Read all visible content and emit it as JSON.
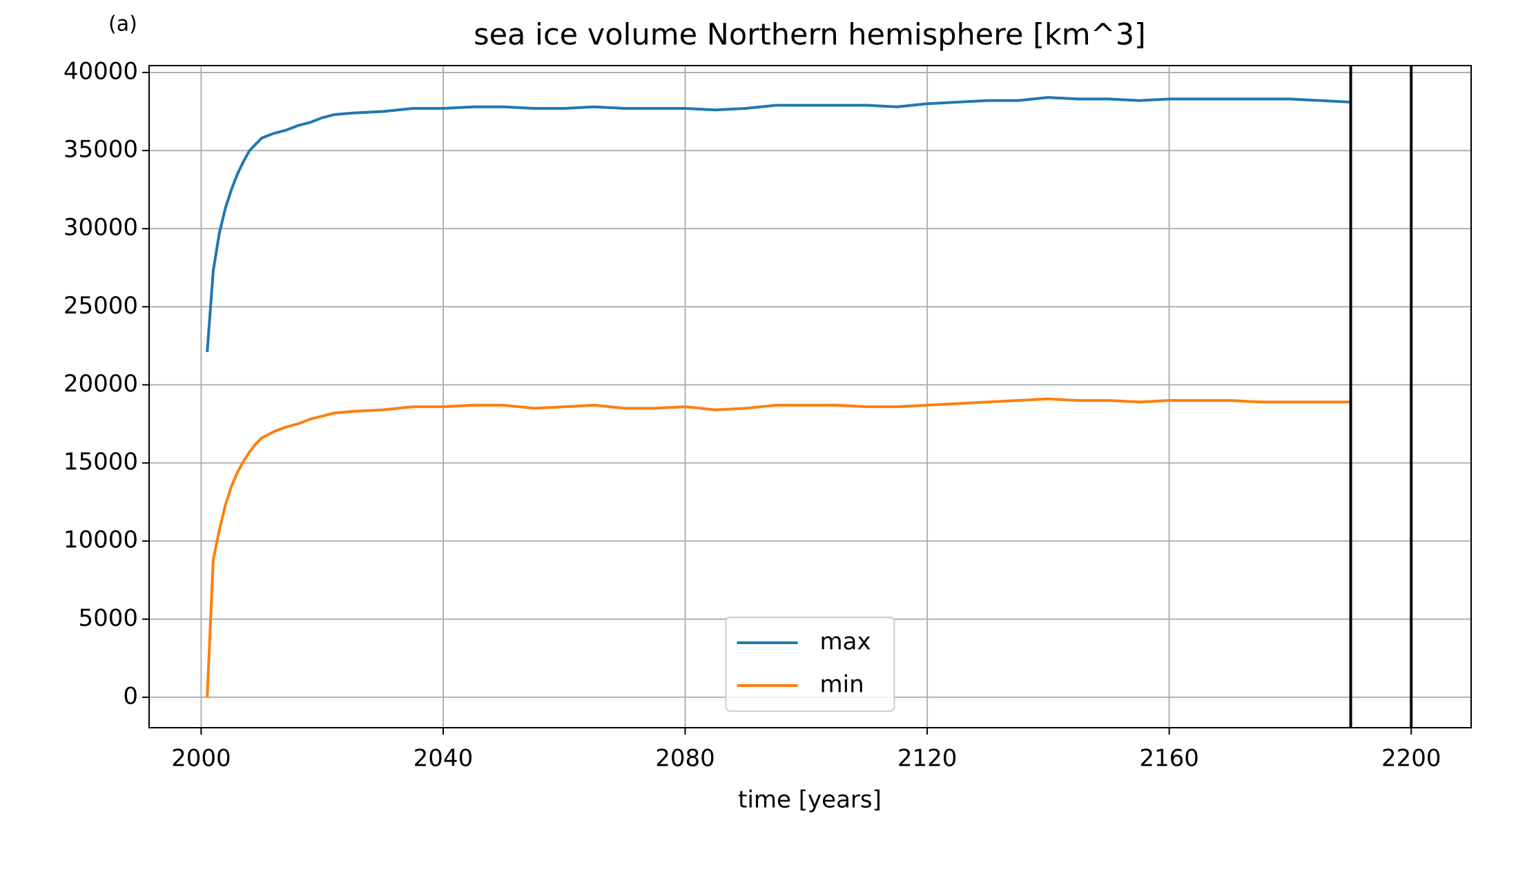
{
  "chart_data": {
    "type": "line",
    "title": "sea ice volume Northern hemisphere [km^3]",
    "annotation": "(a)",
    "xlabel": "time [years]",
    "x": [
      2001,
      2002,
      2003,
      2004,
      2005,
      2006,
      2007,
      2008,
      2009,
      2010,
      2012,
      2014,
      2016,
      2018,
      2020,
      2022,
      2025,
      2030,
      2035,
      2040,
      2045,
      2050,
      2055,
      2060,
      2065,
      2070,
      2075,
      2080,
      2085,
      2090,
      2095,
      2100,
      2105,
      2110,
      2115,
      2120,
      2125,
      2130,
      2135,
      2140,
      2145,
      2150,
      2155,
      2160,
      2165,
      2170,
      2175,
      2180,
      2185,
      2190
    ],
    "series": [
      {
        "name": "max",
        "color": "#1f77b4",
        "values": [
          22100,
          27300,
          29700,
          31300,
          32500,
          33500,
          34300,
          35000,
          35400,
          35800,
          36100,
          36300,
          36600,
          36800,
          37100,
          37300,
          37400,
          37500,
          37700,
          37700,
          37800,
          37800,
          37700,
          37700,
          37800,
          37700,
          37700,
          37700,
          37600,
          37700,
          37900,
          37900,
          37900,
          37900,
          37800,
          38000,
          38100,
          38200,
          38200,
          38400,
          38300,
          38300,
          38200,
          38300,
          38300,
          38300,
          38300,
          38300,
          38200,
          38100
        ]
      },
      {
        "name": "min",
        "color": "#ff7f0e",
        "values": [
          0,
          8800,
          10700,
          12300,
          13500,
          14400,
          15100,
          15700,
          16200,
          16600,
          17000,
          17300,
          17500,
          17800,
          18000,
          18200,
          18300,
          18400,
          18600,
          18600,
          18700,
          18700,
          18500,
          18600,
          18700,
          18500,
          18500,
          18600,
          18400,
          18500,
          18700,
          18700,
          18700,
          18600,
          18600,
          18700,
          18800,
          18900,
          19000,
          19100,
          19000,
          19000,
          18900,
          19000,
          19000,
          19000,
          18900,
          18900,
          18900,
          18900
        ]
      }
    ],
    "vlines": [
      2190,
      2200
    ],
    "vline_color": "#000000",
    "xlim": [
      1991.4,
      2209.9
    ],
    "xticks": [
      2000,
      2040,
      2080,
      2120,
      2160,
      2200
    ],
    "ylim": [
      -1950,
      40440
    ],
    "yticks": [
      0,
      5000,
      10000,
      15000,
      20000,
      25000,
      30000,
      35000,
      40000
    ],
    "grid": true,
    "legend": "lower center"
  }
}
